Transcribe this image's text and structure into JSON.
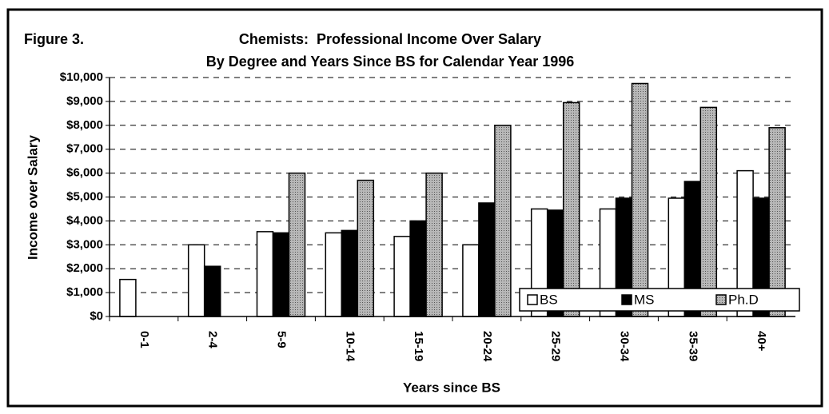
{
  "chart_data": {
    "type": "bar",
    "figure_label": "Figure 3.",
    "title": "Chemists:  Professional Income Over Salary",
    "subtitle": "By Degree and Years Since BS for Calendar Year 1996",
    "y_label": "Income over Salary",
    "x_label": "Years since BS",
    "categories": [
      "0-1",
      "2-4",
      "5-9",
      "10-14",
      "15-19",
      "20-24",
      "25-29",
      "30-34",
      "35-39",
      "40+"
    ],
    "series": [
      {
        "name": "BS",
        "color": "#ffffff",
        "values": [
          1550,
          3000,
          3550,
          3500,
          3350,
          3000,
          4500,
          4500,
          4950,
          6100
        ]
      },
      {
        "name": "MS",
        "color": "#000000",
        "values": [
          null,
          2100,
          3500,
          3600,
          4000,
          4750,
          4450,
          4950,
          5650,
          4950
        ]
      },
      {
        "name": "Ph.D",
        "color": "#a8a8a8",
        "values": [
          null,
          null,
          6000,
          5700,
          6000,
          8000,
          8950,
          9750,
          8750,
          7900
        ]
      }
    ],
    "ylim": [
      0,
      10000
    ],
    "yticks": [
      {
        "value": 0,
        "label": "$0"
      },
      {
        "value": 1000,
        "label": "$1,000"
      },
      {
        "value": 2000,
        "label": "$2,000"
      },
      {
        "value": 3000,
        "label": "$3,000"
      },
      {
        "value": 4000,
        "label": "$4,000"
      },
      {
        "value": 5000,
        "label": "$5,000"
      },
      {
        "value": 6000,
        "label": "$6,000"
      },
      {
        "value": 7000,
        "label": "$7,000"
      },
      {
        "value": 8000,
        "label": "$8,000"
      },
      {
        "value": 9000,
        "label": "$9,000"
      },
      {
        "value": 10000,
        "label": "$10,000"
      }
    ],
    "grid": true,
    "legend": "lower right"
  }
}
